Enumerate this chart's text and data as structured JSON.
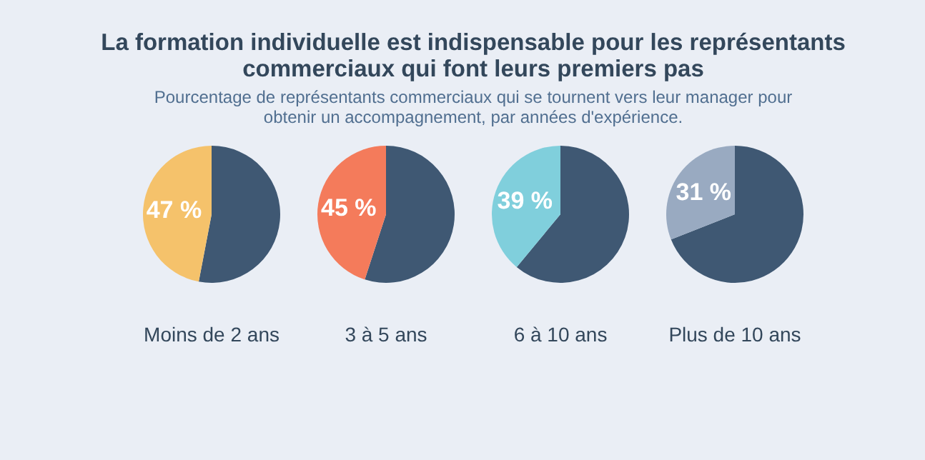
{
  "chart_data": [
    {
      "type": "pie",
      "title": "La formation individuelle est indispensable pour les représentants commerciaux qui font leurs premiers pas",
      "subtitle": "Pourcentage de représentants commerciaux qui se tournent vers leur manager pour obtenir un accompagnement, par années d'expérience.",
      "xlabel": "Moins de 2 ans",
      "categories": [
        null,
        null
      ],
      "values": [
        53,
        47
      ],
      "colors": [
        "#3f5873",
        "#f5c26b"
      ],
      "value_labels": [
        null,
        "47 %"
      ]
    },
    {
      "type": "pie",
      "xlabel": "3 à 5 ans",
      "categories": [
        null,
        null
      ],
      "values": [
        55,
        45
      ],
      "colors": [
        "#3f5873",
        "#f47b5b"
      ],
      "value_labels": [
        null,
        "45 %"
      ]
    },
    {
      "type": "pie",
      "xlabel": "6 à 10 ans",
      "categories": [
        null,
        null
      ],
      "values": [
        61,
        39
      ],
      "colors": [
        "#3f5873",
        "#80cfdc"
      ],
      "value_labels": [
        null,
        "39 %"
      ]
    },
    {
      "type": "pie",
      "xlabel": "Plus de 10 ans",
      "categories": [
        null,
        null
      ],
      "values": [
        69,
        31
      ],
      "colors": [
        "#3f5873",
        "#99aac1"
      ],
      "value_labels": [
        null,
        "31 %"
      ]
    }
  ]
}
